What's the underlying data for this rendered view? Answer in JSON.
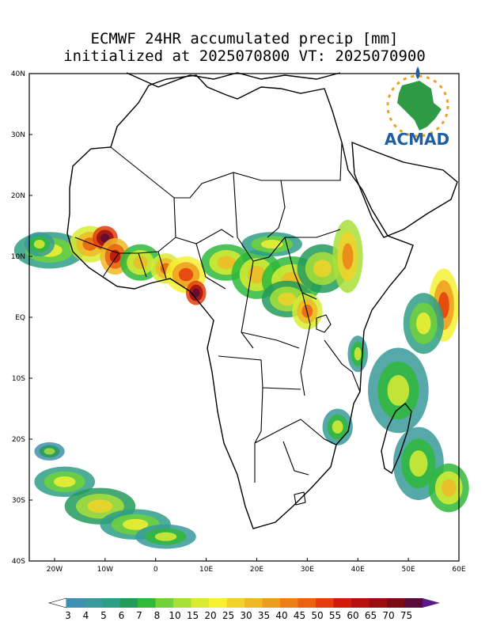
{
  "title": {
    "line1": "ECMWF 24HR accumulated precip [mm]",
    "line2": "initialized at 2025070800 VT: 2025070900"
  },
  "logo": {
    "text": "ACMAD"
  },
  "map": {
    "lon_range": [
      -25,
      60
    ],
    "lat_range": [
      -40,
      40
    ],
    "lat_ticks": [
      {
        "lat": 40,
        "label": "40N"
      },
      {
        "lat": 30,
        "label": "30N"
      },
      {
        "lat": 20,
        "label": "20N"
      },
      {
        "lat": 10,
        "label": "10N"
      },
      {
        "lat": 0,
        "label": "EQ"
      },
      {
        "lat": -10,
        "label": "10S"
      },
      {
        "lat": -20,
        "label": "20S"
      },
      {
        "lat": -30,
        "label": "30S"
      },
      {
        "lat": -40,
        "label": "40S"
      }
    ],
    "lon_ticks": [
      {
        "lon": -20,
        "label": "20W"
      },
      {
        "lon": -10,
        "label": "10W"
      },
      {
        "lon": 0,
        "label": "0"
      },
      {
        "lon": 10,
        "label": "10E"
      },
      {
        "lon": 20,
        "label": "20E"
      },
      {
        "lon": 30,
        "label": "30E"
      },
      {
        "lon": 40,
        "label": "40E"
      },
      {
        "lon": 50,
        "label": "50E"
      },
      {
        "lon": 60,
        "label": "60E"
      }
    ]
  },
  "colorbar": {
    "labels": [
      "3",
      "4",
      "5",
      "6",
      "7",
      "8",
      "10",
      "15",
      "20",
      "25",
      "30",
      "35",
      "40",
      "45",
      "50",
      "55",
      "60",
      "65",
      "70",
      "75"
    ],
    "colors": [
      "#3f8fb0",
      "#3a9a9a",
      "#2e9f86",
      "#239b5a",
      "#2fb83a",
      "#6fd23a",
      "#a8e03a",
      "#d8ec34",
      "#f5f032",
      "#f2d22a",
      "#f0b824",
      "#ee9c1e",
      "#ec7f18",
      "#e96212",
      "#e43c0c",
      "#d11a0a",
      "#b5100c",
      "#9a0c10",
      "#7a0a14",
      "#5a0a3a"
    ],
    "low_color": "#ffffff",
    "high_color": "#5a1a8a"
  }
}
